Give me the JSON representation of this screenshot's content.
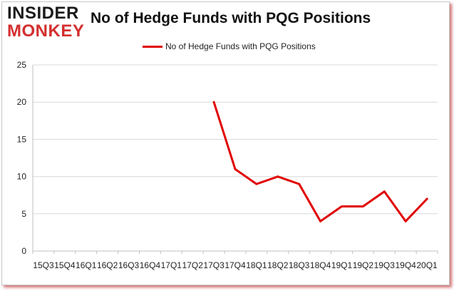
{
  "logo": {
    "line1": "INSIDER",
    "line2": "MONKEY"
  },
  "colors": {
    "line": "#e00000",
    "grid": "#d9d9d9",
    "logo_accent": "#d32f2f"
  },
  "chart_data": {
    "type": "line",
    "title": "No of Hedge Funds with PQG Positions",
    "xlabel": "",
    "ylabel": "",
    "legend": "top-center",
    "grid": true,
    "ylim": [
      0,
      25
    ],
    "yticks": [
      0,
      5,
      10,
      15,
      20,
      25
    ],
    "categories": [
      "15Q3",
      "15Q4",
      "16Q1",
      "16Q2",
      "16Q3",
      "16Q4",
      "17Q1",
      "17Q2",
      "17Q3",
      "17Q4",
      "18Q1",
      "18Q2",
      "18Q3",
      "18Q4",
      "19Q1",
      "19Q2",
      "19Q3",
      "19Q4",
      "20Q1"
    ],
    "series": [
      {
        "name": "No of Hedge Funds with PQG Positions",
        "values": [
          null,
          null,
          null,
          null,
          null,
          null,
          null,
          null,
          20,
          11,
          9,
          10,
          9,
          4,
          6,
          6,
          8,
          4,
          7
        ]
      }
    ]
  }
}
